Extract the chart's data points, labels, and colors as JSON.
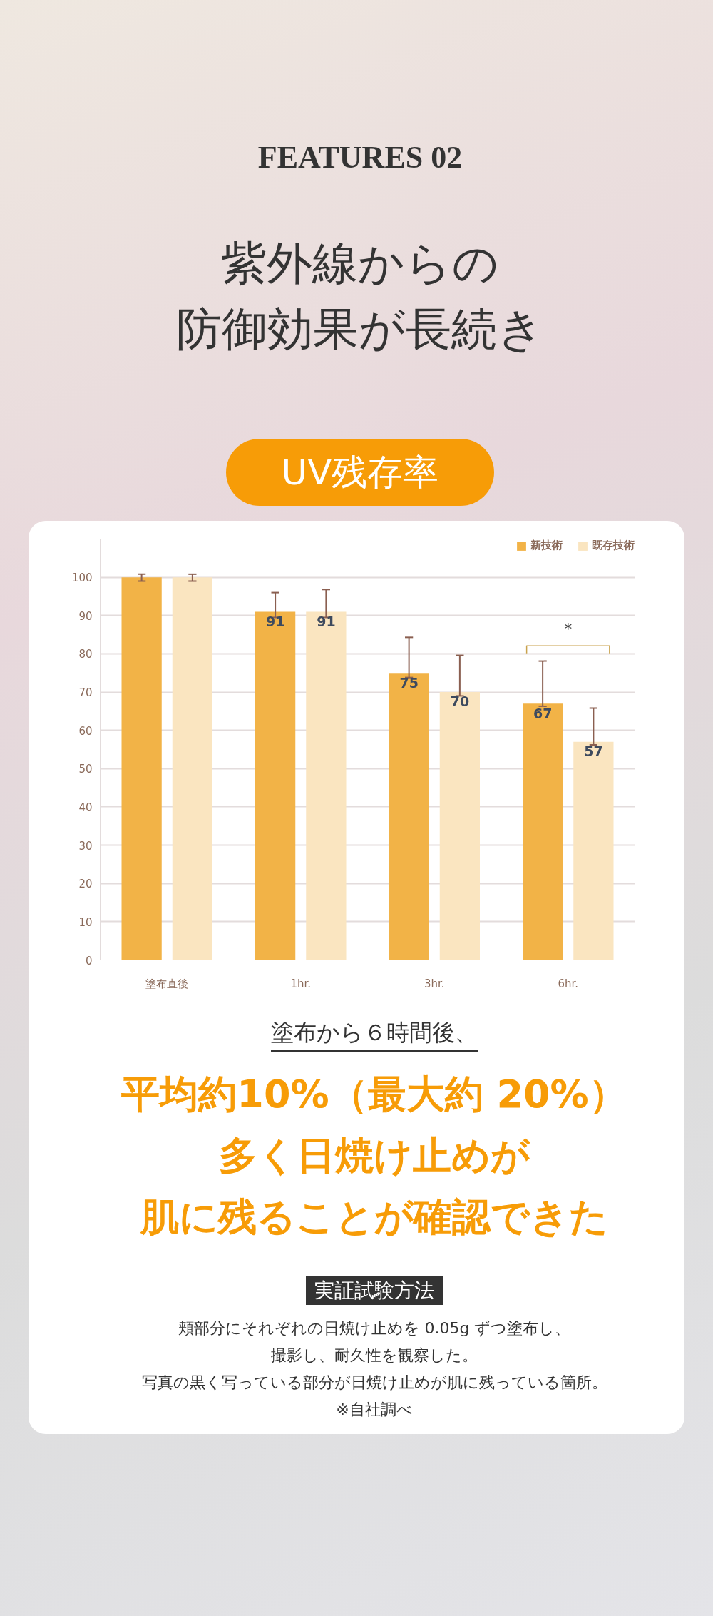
{
  "chart_data": {
    "type": "bar",
    "title": "UV残存率",
    "categories": [
      "塗布直後",
      "1hr.",
      "3hr.",
      "6hr."
    ],
    "series": [
      {
        "name": "新技術",
        "color": "#f2b347",
        "values": [
          100,
          91,
          75,
          67
        ],
        "value_labels": [
          null,
          "91",
          "75",
          "67"
        ],
        "errors": [
          [
            99,
            100.8
          ],
          [
            89.5,
            96
          ],
          [
            73.8,
            84.3
          ],
          [
            66.3,
            78.1
          ]
        ]
      },
      {
        "name": "既存技術",
        "color": "#fae5c0",
        "values": [
          100,
          91,
          70,
          57
        ],
        "value_labels": [
          null,
          "91",
          "70",
          "57"
        ],
        "errors": [
          [
            99,
            100.8
          ],
          [
            89.5,
            96.8
          ],
          [
            69,
            79.6
          ],
          [
            56.2,
            65.8
          ]
        ]
      }
    ],
    "ylim": [
      0,
      110
    ],
    "yticks": [
      0,
      10,
      20,
      30,
      40,
      50,
      60,
      70,
      80,
      90,
      100
    ],
    "grid": "y",
    "legend": "top right",
    "annotations": [
      "FEATURES 02",
      "紫外線からの",
      "防御効果が長続き",
      "*",
      "塗布から６時間後、",
      "平均約10%（最大約 20%）",
      "多く日焼け止めが",
      "肌に残ることが確認できた",
      "実証試験方法",
      "頬部分にそれぞれの日焼け止めを 0.05g ずつ塗布し、",
      "撮影し、耐久性を観察した。",
      "写真の黒く写っている部分が日焼け止めが肌に残っている箇所。",
      "※自社調べ"
    ]
  }
}
